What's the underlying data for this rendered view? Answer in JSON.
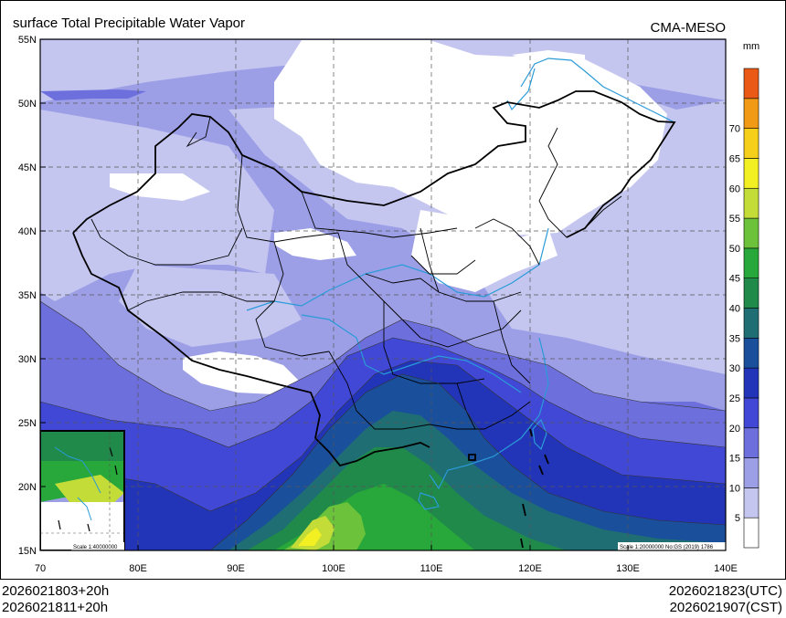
{
  "header": {
    "title": "surface Total Precipitable Water Vapor",
    "model": "CMA-MESO"
  },
  "map": {
    "lat_labels": [
      "55N",
      "50N",
      "45N",
      "40N",
      "35N",
      "30N",
      "25N",
      "20N",
      "15N"
    ],
    "lon_labels": [
      "70",
      "80E",
      "90E",
      "100E",
      "110E",
      "120E",
      "130E",
      "140E"
    ],
    "scale_main": "Scale 1:20000000 No:GS (2019) 1786",
    "scale_inset": "Scale 1:40000000"
  },
  "colorbar": {
    "unit": "mm",
    "levels": [
      "5",
      "10",
      "15",
      "20",
      "25",
      "30",
      "35",
      "40",
      "45",
      "50",
      "55",
      "60",
      "65",
      "70"
    ],
    "colors": [
      "#ffffff",
      "#c4c6f0",
      "#9c9fe6",
      "#6d70dc",
      "#4148d6",
      "#2235b8",
      "#1a4f9c",
      "#1f6e74",
      "#1f8a4a",
      "#28a83a",
      "#6cc23a",
      "#c4dc38",
      "#f2ef22",
      "#f5cf1a",
      "#f19a16",
      "#ea5a16"
    ]
  },
  "footer": {
    "init_utc": "2026021803+20h",
    "init_cst": "2026021811+20h",
    "valid_utc": "2026021823(UTC)",
    "valid_cst": "2026021907(CST)"
  }
}
